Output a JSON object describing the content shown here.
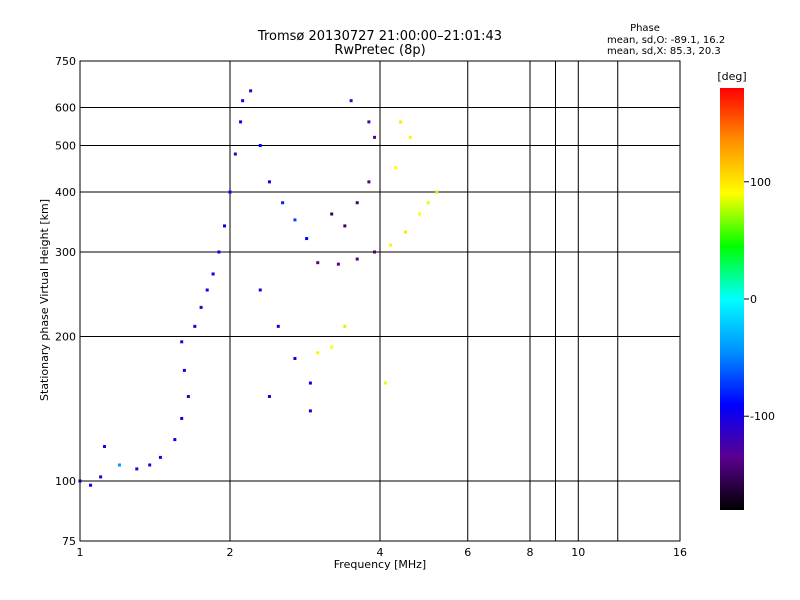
{
  "chart_data": {
    "type": "scatter",
    "title": "Tromsø 20130727 21:00:00–21:01:43",
    "subtitle": "RwPretec (8p)",
    "xlabel": "Frequency [MHz]",
    "ylabel": "Stationary phase Virtual Height [km]",
    "xscale": "log",
    "yscale": "log",
    "xlim": [
      1,
      16
    ],
    "ylim": [
      75,
      750
    ],
    "xticks": [
      "1",
      "2",
      "4",
      "6",
      "8",
      "10",
      "16"
    ],
    "yticks": [
      "75",
      "100",
      "200",
      "300",
      "400",
      "500",
      "600",
      "750"
    ],
    "grid": true,
    "stats": {
      "title": "Phase",
      "line_o": "mean, sd,O: -89.1, 16.2",
      "line_x": "mean, sd,X:  85.3, 20.3"
    },
    "colorbar": {
      "label": "[deg]",
      "range": [
        -180,
        180
      ],
      "ticks": [
        "100",
        "0",
        "-100"
      ],
      "colors": [
        "#000000",
        "#5a0090",
        "#0000ff",
        "#0090ff",
        "#00ffff",
        "#00ff00",
        "#ffff00",
        "#ff9000",
        "#ff0000"
      ]
    },
    "series": [
      {
        "values": [
          [
            1.0,
            100,
            -100
          ],
          [
            1.05,
            98,
            -95
          ],
          [
            1.1,
            102,
            -100
          ],
          [
            1.12,
            118,
            -100
          ],
          [
            1.2,
            108,
            -40
          ],
          [
            1.3,
            106,
            -110
          ],
          [
            1.38,
            108,
            -110
          ],
          [
            1.45,
            112,
            -105
          ],
          [
            1.55,
            122,
            -95
          ],
          [
            1.6,
            135,
            -100
          ],
          [
            1.65,
            150,
            -110
          ],
          [
            1.62,
            170,
            -100
          ],
          [
            1.6,
            195,
            -105
          ],
          [
            1.7,
            210,
            -100
          ],
          [
            1.75,
            230,
            -110
          ],
          [
            1.8,
            250,
            -100
          ],
          [
            1.85,
            270,
            -95
          ],
          [
            1.9,
            300,
            -100
          ],
          [
            1.95,
            340,
            -90
          ],
          [
            2.0,
            400,
            -100
          ],
          [
            2.05,
            480,
            -110
          ],
          [
            2.1,
            560,
            -95
          ],
          [
            2.12,
            620,
            -100
          ],
          [
            2.2,
            650,
            -110
          ],
          [
            2.3,
            500,
            -90
          ],
          [
            2.4,
            420,
            -95
          ],
          [
            2.55,
            380,
            -80
          ],
          [
            2.7,
            350,
            -70
          ],
          [
            2.85,
            320,
            -90
          ],
          [
            2.3,
            250,
            -110
          ],
          [
            2.5,
            210,
            -100
          ],
          [
            2.7,
            180,
            -100
          ],
          [
            2.9,
            160,
            -95
          ],
          [
            2.4,
            150,
            -110
          ],
          [
            2.9,
            140,
            -100
          ]
        ]
      },
      {
        "values": [
          [
            3.0,
            285,
            -140
          ],
          [
            3.3,
            283,
            -135
          ],
          [
            3.6,
            290,
            -140
          ],
          [
            3.9,
            300,
            -145
          ],
          [
            3.2,
            360,
            -150
          ],
          [
            3.4,
            340,
            -150
          ],
          [
            3.6,
            380,
            -145
          ],
          [
            3.8,
            420,
            -140
          ],
          [
            3.9,
            520,
            -135
          ],
          [
            3.5,
            620,
            -120
          ],
          [
            3.8,
            560,
            -130
          ]
        ]
      },
      {
        "values": [
          [
            4.2,
            310,
            95
          ],
          [
            4.5,
            330,
            100
          ],
          [
            4.8,
            360,
            90
          ],
          [
            5.0,
            380,
            85
          ],
          [
            5.2,
            400,
            80
          ],
          [
            4.4,
            560,
            100
          ],
          [
            4.6,
            520,
            95
          ],
          [
            4.3,
            450,
            90
          ],
          [
            4.1,
            160,
            85
          ],
          [
            3.2,
            190,
            90
          ],
          [
            3.0,
            185,
            95
          ],
          [
            3.4,
            210,
            80
          ]
        ]
      }
    ]
  }
}
